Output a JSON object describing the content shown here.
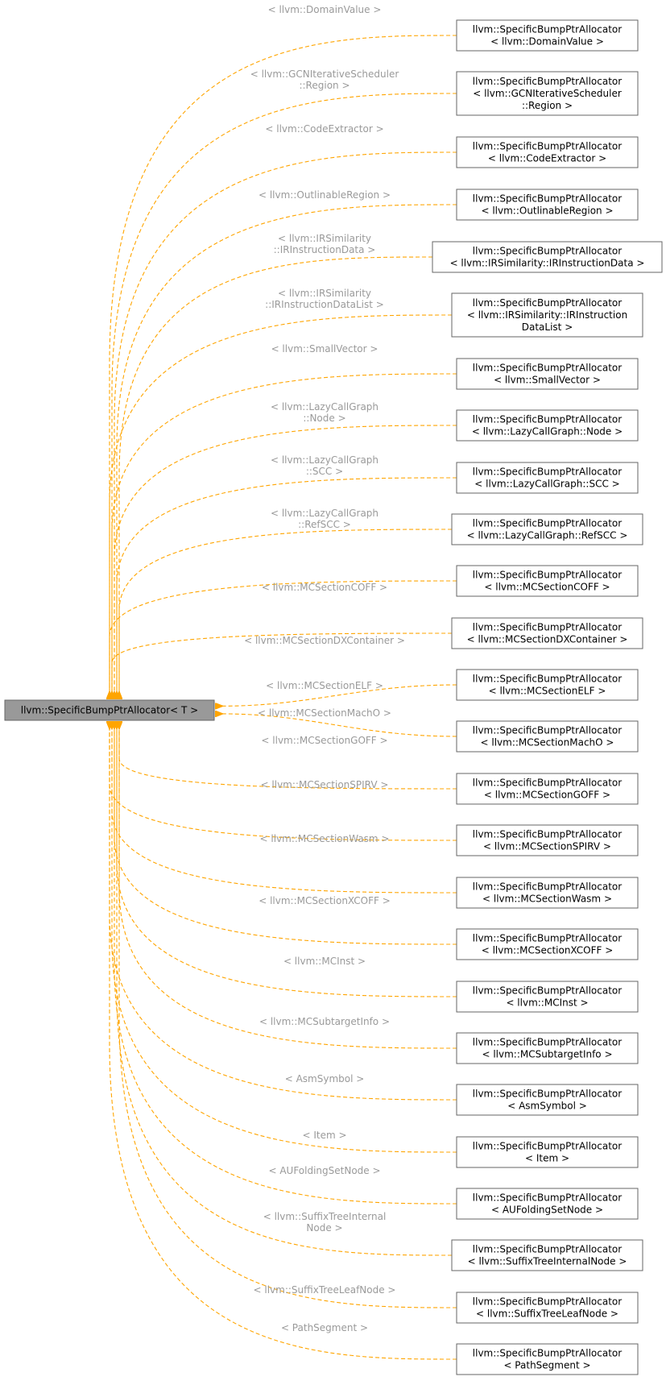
{
  "root": {
    "label": "llvm::SpecificBumpPtrAllocator< T >"
  },
  "colors": {
    "edge": "#ffa500",
    "edge_label": "#9a9a9a",
    "root_fill": "#999999",
    "node_border": "#666666"
  },
  "nodes": [
    {
      "edge_label": [
        "< llvm::DomainValue >"
      ],
      "lines": [
        "llvm::SpecificBumpPtrAllocator",
        "< llvm::DomainValue >"
      ]
    },
    {
      "edge_label": [
        "< llvm::GCNIterativeScheduler",
        "::Region >"
      ],
      "lines": [
        "llvm::SpecificBumpPtrAllocator",
        "< llvm::GCNIterativeScheduler",
        "::Region >"
      ]
    },
    {
      "edge_label": [
        "< llvm::CodeExtractor >"
      ],
      "lines": [
        "llvm::SpecificBumpPtrAllocator",
        "< llvm::CodeExtractor >"
      ]
    },
    {
      "edge_label": [
        "< llvm::OutlinableRegion >"
      ],
      "lines": [
        "llvm::SpecificBumpPtrAllocator",
        "< llvm::OutlinableRegion >"
      ]
    },
    {
      "edge_label": [
        "< llvm::IRSimilarity",
        "::IRInstructionData >"
      ],
      "lines": [
        "llvm::SpecificBumpPtrAllocator",
        "< llvm::IRSimilarity::IRInstructionData >"
      ]
    },
    {
      "edge_label": [
        "< llvm::IRSimilarity",
        "::IRInstructionDataList >"
      ],
      "lines": [
        "llvm::SpecificBumpPtrAllocator",
        "< llvm::IRSimilarity::IRInstruction",
        "DataList >"
      ]
    },
    {
      "edge_label": [
        "< llvm::SmallVector >"
      ],
      "lines": [
        "llvm::SpecificBumpPtrAllocator",
        "< llvm::SmallVector >"
      ]
    },
    {
      "edge_label": [
        "< llvm::LazyCallGraph",
        "::Node >"
      ],
      "lines": [
        "llvm::SpecificBumpPtrAllocator",
        "< llvm::LazyCallGraph::Node >"
      ]
    },
    {
      "edge_label": [
        "< llvm::LazyCallGraph",
        "::SCC >"
      ],
      "lines": [
        "llvm::SpecificBumpPtrAllocator",
        "< llvm::LazyCallGraph::SCC >"
      ]
    },
    {
      "edge_label": [
        "< llvm::LazyCallGraph",
        "::RefSCC >"
      ],
      "lines": [
        "llvm::SpecificBumpPtrAllocator",
        "< llvm::LazyCallGraph::RefSCC >"
      ]
    },
    {
      "edge_label": [
        "< llvm::MCSectionCOFF >"
      ],
      "lines": [
        "llvm::SpecificBumpPtrAllocator",
        "< llvm::MCSectionCOFF >"
      ]
    },
    {
      "edge_label": [
        "< llvm::MCSectionDXContainer >"
      ],
      "lines": [
        "llvm::SpecificBumpPtrAllocator",
        "< llvm::MCSectionDXContainer >"
      ]
    },
    {
      "edge_label": [
        "< llvm::MCSectionELF >"
      ],
      "lines": [
        "llvm::SpecificBumpPtrAllocator",
        "< llvm::MCSectionELF >"
      ]
    },
    {
      "edge_label": [
        "< llvm::MCSectionMachO >"
      ],
      "lines": [
        "llvm::SpecificBumpPtrAllocator",
        "< llvm::MCSectionMachO >"
      ]
    },
    {
      "edge_label": [
        "< llvm::MCSectionGOFF >"
      ],
      "lines": [
        "llvm::SpecificBumpPtrAllocator",
        "< llvm::MCSectionGOFF >"
      ]
    },
    {
      "edge_label": [
        "< llvm::MCSectionSPIRV >"
      ],
      "lines": [
        "llvm::SpecificBumpPtrAllocator",
        "< llvm::MCSectionSPIRV >"
      ]
    },
    {
      "edge_label": [
        "< llvm::MCSectionWasm >"
      ],
      "lines": [
        "llvm::SpecificBumpPtrAllocator",
        "< llvm::MCSectionWasm >"
      ]
    },
    {
      "edge_label": [
        "< llvm::MCSectionXCOFF >"
      ],
      "lines": [
        "llvm::SpecificBumpPtrAllocator",
        "< llvm::MCSectionXCOFF >"
      ]
    },
    {
      "edge_label": [
        "< llvm::MCInst >"
      ],
      "lines": [
        "llvm::SpecificBumpPtrAllocator",
        "< llvm::MCInst >"
      ]
    },
    {
      "edge_label": [
        "< llvm::MCSubtargetInfo >"
      ],
      "lines": [
        "llvm::SpecificBumpPtrAllocator",
        "< llvm::MCSubtargetInfo >"
      ]
    },
    {
      "edge_label": [
        "< AsmSymbol >"
      ],
      "lines": [
        "llvm::SpecificBumpPtrAllocator",
        "< AsmSymbol >"
      ]
    },
    {
      "edge_label": [
        "< Item >"
      ],
      "lines": [
        "llvm::SpecificBumpPtrAllocator",
        "< Item >"
      ]
    },
    {
      "edge_label": [
        "< AUFoldingSetNode >"
      ],
      "lines": [
        "llvm::SpecificBumpPtrAllocator",
        "< AUFoldingSetNode >"
      ]
    },
    {
      "edge_label": [
        "< llvm::SuffixTreeInternal",
        "Node >"
      ],
      "lines": [
        "llvm::SpecificBumpPtrAllocator",
        "< llvm::SuffixTreeInternalNode >"
      ]
    },
    {
      "edge_label": [
        "< llvm::SuffixTreeLeafNode >"
      ],
      "lines": [
        "llvm::SpecificBumpPtrAllocator",
        "< llvm::SuffixTreeLeafNode >"
      ]
    },
    {
      "edge_label": [
        "< PathSegment >"
      ],
      "lines": [
        "llvm::SpecificBumpPtrAllocator",
        "< PathSegment >"
      ]
    }
  ]
}
